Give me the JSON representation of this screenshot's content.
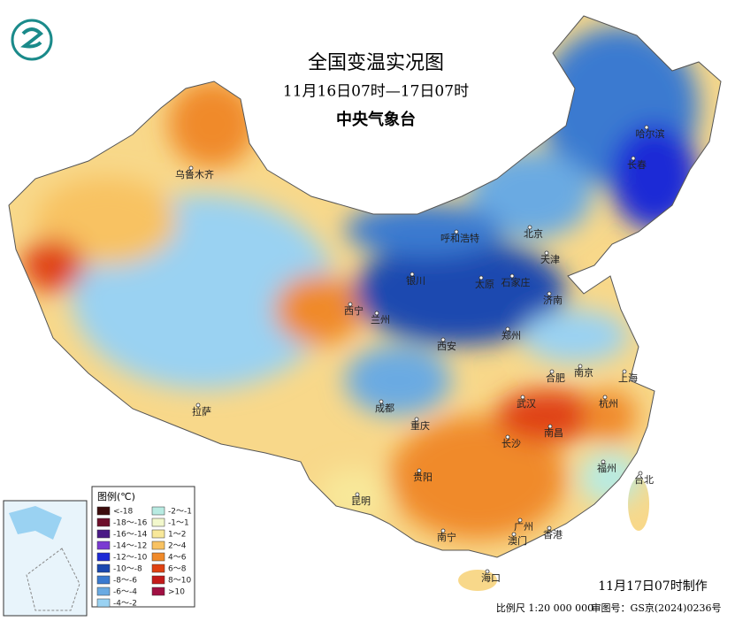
{
  "header": {
    "title": "全国变温实况图",
    "subtitle": "11月16日07时—17日07时",
    "issuer": "中央气象台"
  },
  "legend": {
    "title": "图例(℃)",
    "items": [
      {
        "label": "<-18",
        "color": "#3c0c0c"
      },
      {
        "label": "-18～-16",
        "color": "#6e0f2a"
      },
      {
        "label": "-16～-14",
        "color": "#4a1a86"
      },
      {
        "label": "-14～-12",
        "color": "#7a3ad2"
      },
      {
        "label": "-12～-10",
        "color": "#1c2ad6"
      },
      {
        "label": "-10～-8",
        "color": "#1a48b0"
      },
      {
        "label": "-8～-6",
        "color": "#3a7ad0"
      },
      {
        "label": "-6～-4",
        "color": "#6aaae2"
      },
      {
        "label": "-4～-2",
        "color": "#9ad2f2"
      },
      {
        "label": "-2～-1",
        "color": "#b8ebe2"
      },
      {
        "label": "-1～1",
        "color": "#f2f8cc"
      },
      {
        "label": "1～2",
        "color": "#f8e89a"
      },
      {
        "label": "2～4",
        "color": "#f8c262"
      },
      {
        "label": "4～6",
        "color": "#f08a2a"
      },
      {
        "label": "6～8",
        "color": "#e04212"
      },
      {
        "label": "8～10",
        "color": "#c41a1a"
      },
      {
        "label": ">10",
        "color": "#a01042"
      }
    ]
  },
  "cities": [
    "乌鲁木齐",
    "呼和浩特",
    "北京",
    "天津",
    "石家庄",
    "太原",
    "银川",
    "济南",
    "西宁",
    "兰州",
    "郑州",
    "西安",
    "合肥",
    "南京",
    "上海",
    "武汉",
    "杭州",
    "拉萨",
    "成都",
    "重庆",
    "长沙",
    "南昌",
    "福州",
    "台北",
    "贵阳",
    "昆明",
    "南宁",
    "广州",
    "澳门",
    "香港",
    "海口",
    "哈尔滨",
    "长春"
  ],
  "footer": {
    "made": "11月17日07时制作",
    "scale": "比例尺 1:20 000 000",
    "approval": "审图号：GS京(2024)0236号"
  }
}
